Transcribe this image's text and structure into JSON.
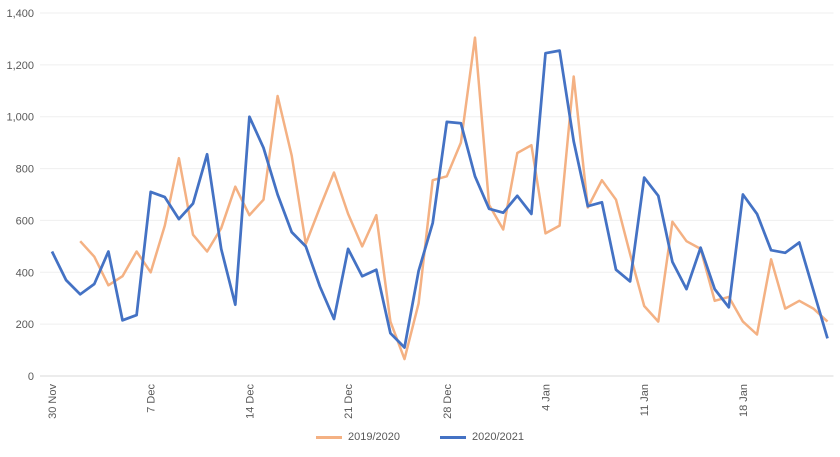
{
  "chart_data": {
    "type": "line",
    "title": "",
    "xlabel": "",
    "ylabel": "",
    "ylim": [
      0,
      1400
    ],
    "yticks": [
      "0",
      "200",
      "400",
      "600",
      "800",
      "1,000",
      "1,200",
      "1,400"
    ],
    "ytick_values": [
      0,
      200,
      400,
      600,
      800,
      1000,
      1200,
      1400
    ],
    "xtick_labels": [
      "30 Nov",
      "7 Dec",
      "14 Dec",
      "21 Dec",
      "28 Dec",
      "4 Jan",
      "11 Jan",
      "18 Jan"
    ],
    "xtick_interval_days": 7,
    "grid": "horizontal",
    "legend_position": "bottom",
    "x": [
      "30 Nov",
      "1 Dec",
      "2 Dec",
      "3 Dec",
      "4 Dec",
      "5 Dec",
      "6 Dec",
      "7 Dec",
      "8 Dec",
      "9 Dec",
      "10 Dec",
      "11 Dec",
      "12 Dec",
      "13 Dec",
      "14 Dec",
      "15 Dec",
      "16 Dec",
      "17 Dec",
      "18 Dec",
      "19 Dec",
      "20 Dec",
      "21 Dec",
      "22 Dec",
      "23 Dec",
      "24 Dec",
      "25 Dec",
      "26 Dec",
      "27 Dec",
      "28 Dec",
      "29 Dec",
      "30 Dec",
      "31 Dec",
      "1 Jan",
      "2 Jan",
      "3 Jan",
      "4 Jan",
      "5 Jan",
      "6 Jan",
      "7 Jan",
      "8 Jan",
      "9 Jan",
      "10 Jan",
      "11 Jan",
      "12 Jan",
      "13 Jan",
      "14 Jan",
      "15 Jan",
      "16 Jan",
      "17 Jan",
      "18 Jan",
      "19 Jan",
      "20 Jan",
      "21 Jan",
      "22 Jan",
      "23 Jan",
      "24 Jan"
    ],
    "series": [
      {
        "name": "2019/2020",
        "color": "#F4B183",
        "values": [
          null,
          null,
          520,
          460,
          350,
          385,
          480,
          400,
          580,
          840,
          545,
          480,
          570,
          730,
          620,
          680,
          1080,
          850,
          510,
          650,
          785,
          625,
          500,
          620,
          210,
          65,
          280,
          755,
          770,
          900,
          1305,
          660,
          565,
          860,
          890,
          550,
          580,
          1155,
          650,
          755,
          680,
          470,
          270,
          210,
          595,
          520,
          490,
          290,
          305,
          210,
          160,
          450,
          260,
          290,
          260,
          210
        ]
      },
      {
        "name": "2020/2021",
        "color": "#4472C4",
        "values": [
          480,
          370,
          315,
          355,
          480,
          215,
          235,
          710,
          690,
          605,
          665,
          855,
          490,
          275,
          1000,
          880,
          700,
          555,
          500,
          345,
          220,
          490,
          385,
          410,
          165,
          110,
          405,
          590,
          980,
          975,
          770,
          645,
          630,
          695,
          625,
          1245,
          1255,
          905,
          655,
          670,
          410,
          365,
          765,
          695,
          440,
          335,
          495,
          335,
          265,
          700,
          625,
          485,
          475,
          515,
          330,
          145
        ]
      }
    ]
  }
}
